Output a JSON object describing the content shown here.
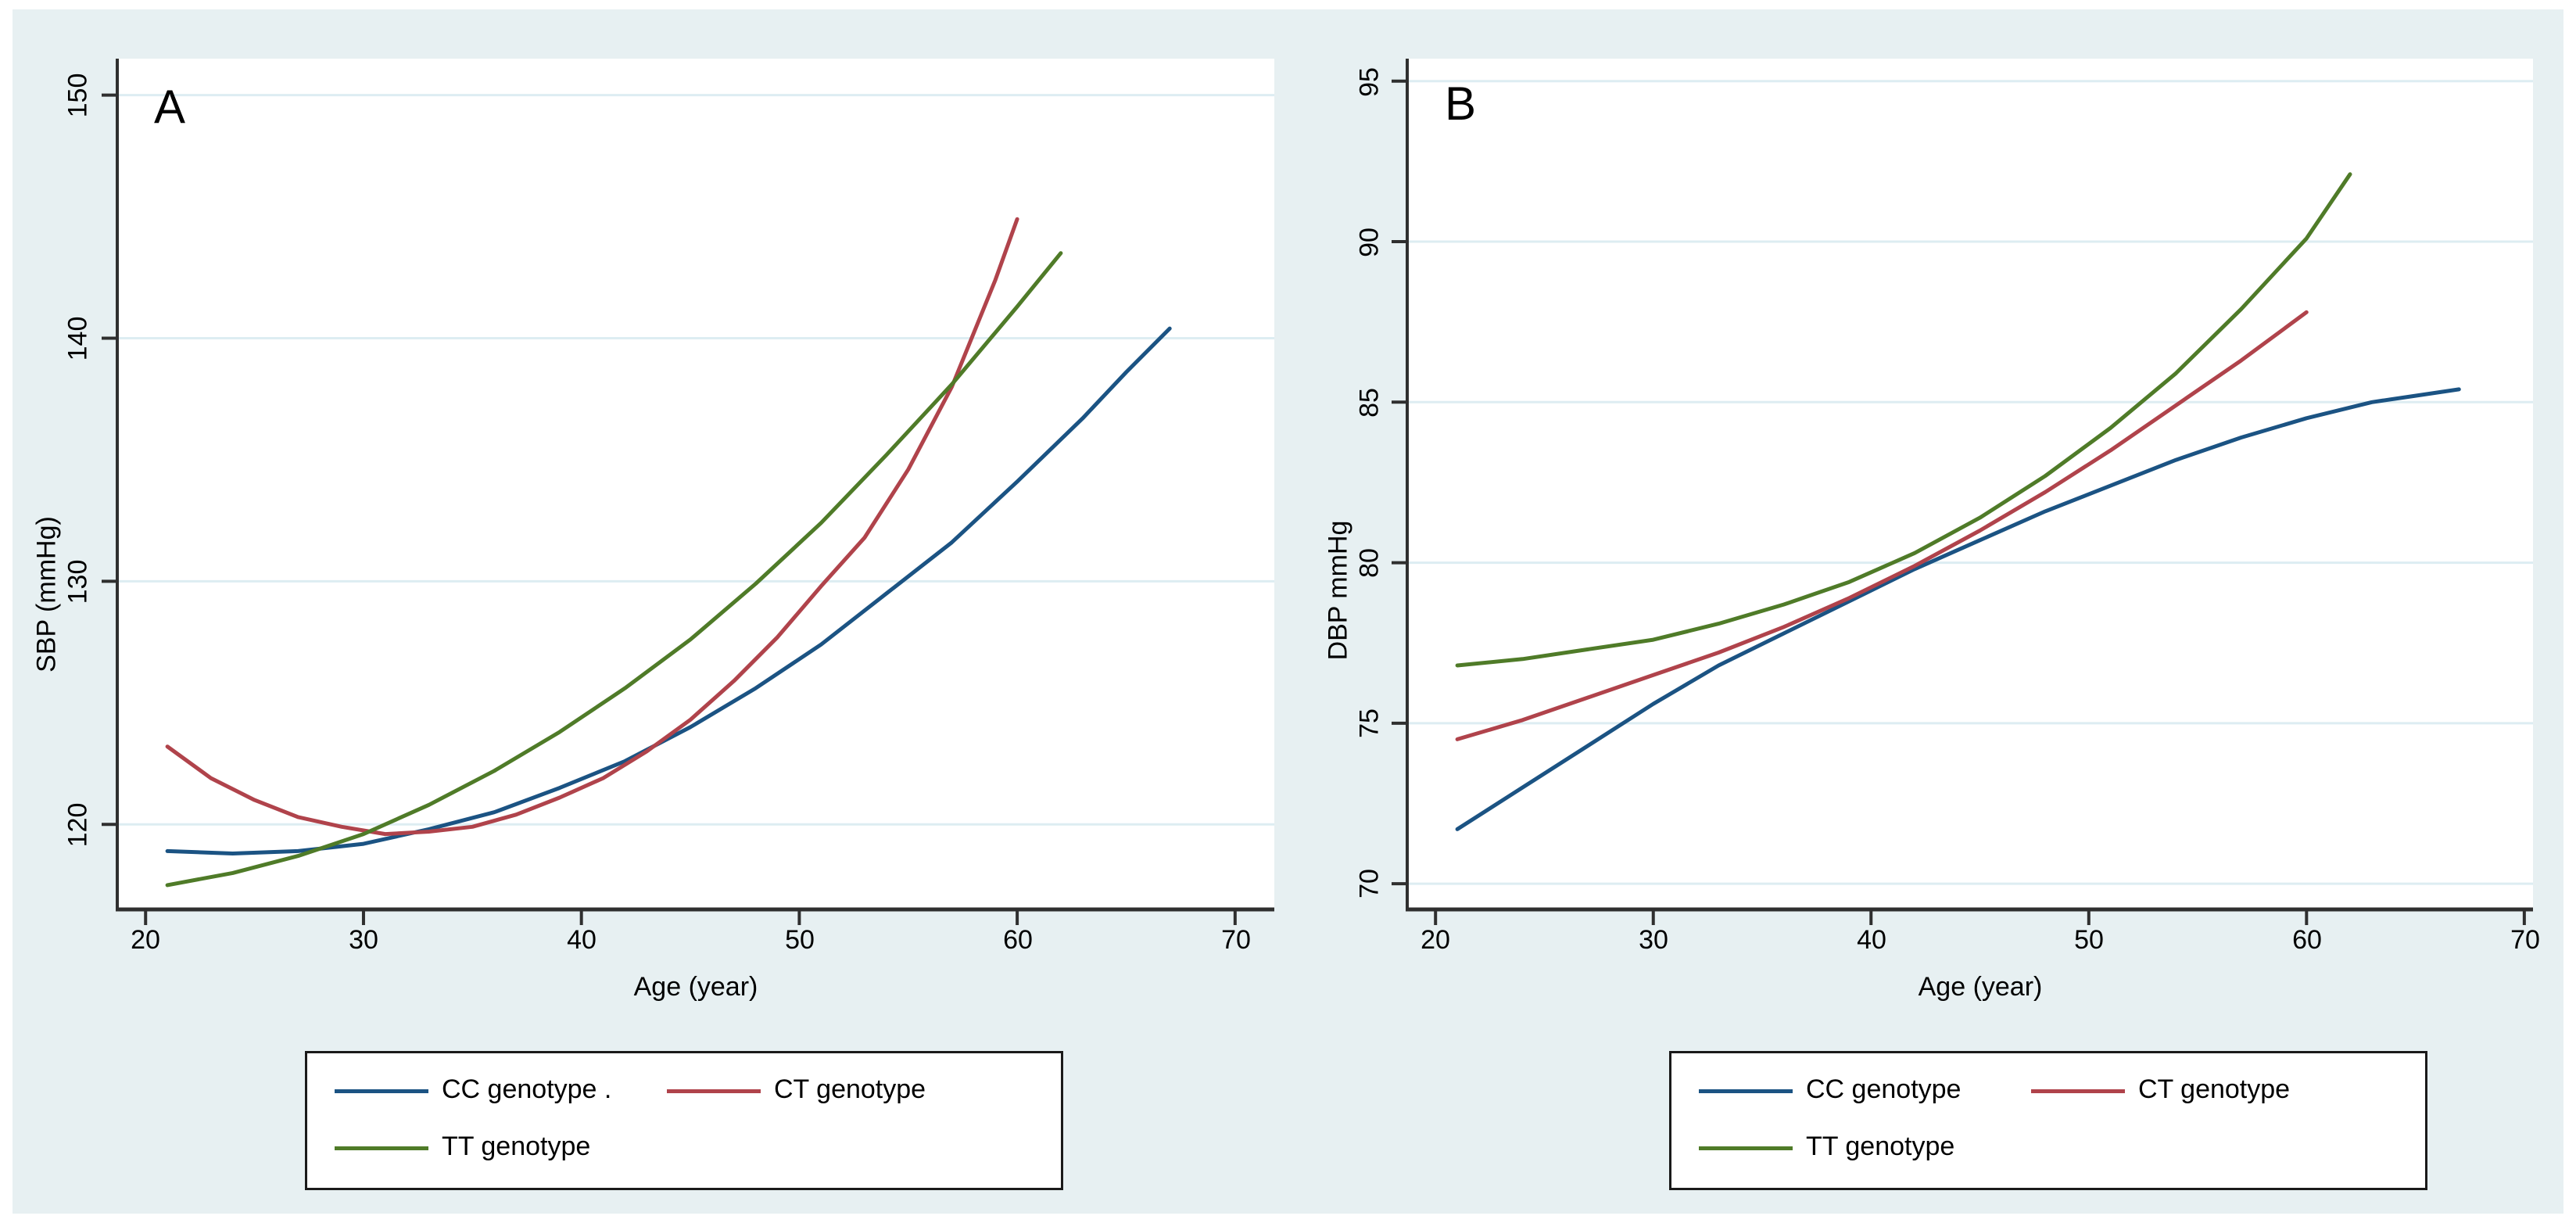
{
  "figure": {
    "background_color": "#e7f0f2",
    "grid_color": "#ddedf2",
    "axis_color": "#2f2f2f",
    "panel_a_letter": "A",
    "panel_b_letter": "B"
  },
  "colors": {
    "cc": "#1b5383",
    "ct": "#b0434b",
    "tt": "#4f7b28"
  },
  "panel_a": {
    "letter": "A",
    "ylabel": "SBP (mmHg)",
    "xlabel": "Age (year)",
    "x_tick_labels": [
      "20",
      "30",
      "40",
      "50",
      "60",
      "70"
    ],
    "y_tick_labels": [
      "120",
      "130",
      "140",
      "150"
    ],
    "legend": {
      "cc_label": "CC genotype .",
      "ct_label": "CT genotype",
      "tt_label": "TT genotype"
    }
  },
  "panel_b": {
    "letter": "B",
    "ylabel": "DBP mmHg",
    "xlabel": "Age (year)",
    "x_tick_labels": [
      "20",
      "30",
      "40",
      "50",
      "60",
      "70"
    ],
    "y_tick_labels": [
      "70",
      "75",
      "80",
      "85",
      "90",
      "95"
    ],
    "legend": {
      "cc_label": "CC genotype",
      "ct_label": "CT genotype",
      "tt_label": "TT genotype"
    }
  },
  "chart_data": [
    {
      "type": "line",
      "panel": "A",
      "title": "",
      "xlabel": "Age (year)",
      "ylabel": "SBP (mmHg)",
      "xlim": [
        18.7,
        71.8
      ],
      "ylim": [
        116.5,
        151.5
      ],
      "x_ticks": [
        20,
        30,
        40,
        50,
        60,
        70
      ],
      "y_ticks": [
        120,
        130,
        140,
        150
      ],
      "grid": true,
      "legend_position": "bottom",
      "series": [
        {
          "name": "CC genotype",
          "color": "#1b5383",
          "points": [
            [
              21,
              118.9
            ],
            [
              24,
              118.8
            ],
            [
              27,
              118.9
            ],
            [
              30,
              119.2
            ],
            [
              33,
              119.8
            ],
            [
              36,
              120.5
            ],
            [
              39,
              121.5
            ],
            [
              42,
              122.6
            ],
            [
              45,
              124.0
            ],
            [
              48,
              125.6
            ],
            [
              51,
              127.4
            ],
            [
              54,
              129.5
            ],
            [
              57,
              131.6
            ],
            [
              60,
              134.1
            ],
            [
              63,
              136.7
            ],
            [
              65,
              138.6
            ],
            [
              67,
              140.4
            ]
          ]
        },
        {
          "name": "CT genotype",
          "color": "#b0434b",
          "points": [
            [
              21,
              123.2
            ],
            [
              23,
              121.9
            ],
            [
              25,
              121.0
            ],
            [
              27,
              120.3
            ],
            [
              29,
              119.9
            ],
            [
              31,
              119.6
            ],
            [
              33,
              119.7
            ],
            [
              35,
              119.9
            ],
            [
              37,
              120.4
            ],
            [
              39,
              121.1
            ],
            [
              41,
              121.9
            ],
            [
              43,
              123.0
            ],
            [
              45,
              124.3
            ],
            [
              47,
              125.9
            ],
            [
              49,
              127.7
            ],
            [
              51,
              129.8
            ],
            [
              53,
              131.8
            ],
            [
              55,
              134.6
            ],
            [
              57,
              138.0
            ],
            [
              59,
              142.4
            ],
            [
              60,
              144.9
            ]
          ]
        },
        {
          "name": "TT genotype",
          "color": "#4f7b28",
          "points": [
            [
              21,
              117.5
            ],
            [
              24,
              118.0
            ],
            [
              27,
              118.7
            ],
            [
              30,
              119.6
            ],
            [
              33,
              120.8
            ],
            [
              36,
              122.2
            ],
            [
              39,
              123.8
            ],
            [
              42,
              125.6
            ],
            [
              45,
              127.6
            ],
            [
              48,
              129.9
            ],
            [
              51,
              132.4
            ],
            [
              54,
              135.2
            ],
            [
              57,
              138.1
            ],
            [
              60,
              141.3
            ],
            [
              62,
              143.5
            ]
          ]
        }
      ]
    },
    {
      "type": "line",
      "panel": "B",
      "title": "",
      "xlabel": "Age (year)",
      "ylabel": "DBP mmHg",
      "xlim": [
        18.7,
        70.4
      ],
      "ylim": [
        69.2,
        95.7
      ],
      "x_ticks": [
        20,
        30,
        40,
        50,
        60,
        70
      ],
      "y_ticks": [
        70,
        75,
        80,
        85,
        90,
        95
      ],
      "grid": true,
      "legend_position": "bottom",
      "series": [
        {
          "name": "CC genotype",
          "color": "#1b5383",
          "points": [
            [
              21,
              71.7
            ],
            [
              24,
              73.0
            ],
            [
              27,
              74.3
            ],
            [
              30,
              75.6
            ],
            [
              33,
              76.8
            ],
            [
              36,
              77.8
            ],
            [
              39,
              78.8
            ],
            [
              42,
              79.8
            ],
            [
              45,
              80.7
            ],
            [
              48,
              81.6
            ],
            [
              51,
              82.4
            ],
            [
              54,
              83.2
            ],
            [
              57,
              83.9
            ],
            [
              60,
              84.5
            ],
            [
              63,
              85.0
            ],
            [
              65,
              85.2
            ],
            [
              67,
              85.4
            ]
          ]
        },
        {
          "name": "CT genotype",
          "color": "#b0434b",
          "points": [
            [
              21,
              74.5
            ],
            [
              24,
              75.1
            ],
            [
              27,
              75.8
            ],
            [
              30,
              76.5
            ],
            [
              33,
              77.2
            ],
            [
              36,
              78.0
            ],
            [
              39,
              78.9
            ],
            [
              42,
              79.9
            ],
            [
              45,
              81.0
            ],
            [
              48,
              82.2
            ],
            [
              51,
              83.5
            ],
            [
              54,
              84.9
            ],
            [
              57,
              86.3
            ],
            [
              60,
              87.8
            ]
          ]
        },
        {
          "name": "TT genotype",
          "color": "#4f7b28",
          "points": [
            [
              21,
              76.8
            ],
            [
              24,
              77.0
            ],
            [
              27,
              77.3
            ],
            [
              30,
              77.6
            ],
            [
              33,
              78.1
            ],
            [
              36,
              78.7
            ],
            [
              39,
              79.4
            ],
            [
              42,
              80.3
            ],
            [
              45,
              81.4
            ],
            [
              48,
              82.7
            ],
            [
              51,
              84.2
            ],
            [
              54,
              85.9
            ],
            [
              57,
              87.9
            ],
            [
              60,
              90.1
            ],
            [
              62,
              92.1
            ]
          ]
        }
      ]
    }
  ]
}
